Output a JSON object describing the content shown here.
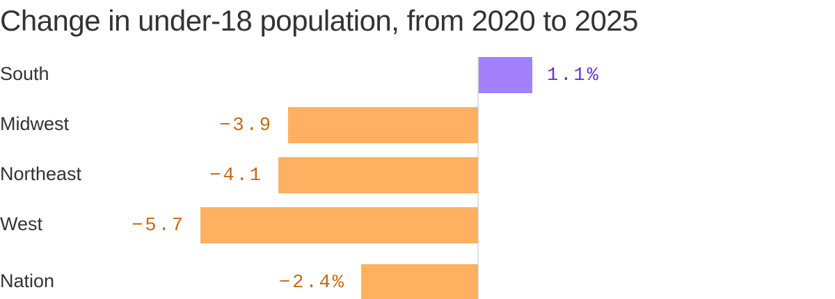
{
  "chart_data": {
    "type": "bar",
    "orientation": "horizontal",
    "title": "Change in under-18 population, from 2020 to 2025",
    "xlabel": "",
    "ylabel": "",
    "categories": [
      "South",
      "Midwest",
      "Northeast",
      "West",
      "Nation"
    ],
    "values": [
      1.1,
      -3.9,
      -4.1,
      -5.7,
      -2.4
    ],
    "value_labels": [
      "1.1%",
      "−3.9",
      "−4.1",
      "−5.7",
      "−2.4%"
    ],
    "xlim": [
      -5.7,
      1.1
    ],
    "grid": false,
    "legend": "none",
    "colors": {
      "positive_bar": "#a381fc",
      "negative_bar": "#ffb060",
      "positive_label": "#6533d8",
      "negative_label": "#c8690f",
      "zero_line": "#d6d6d6"
    }
  }
}
